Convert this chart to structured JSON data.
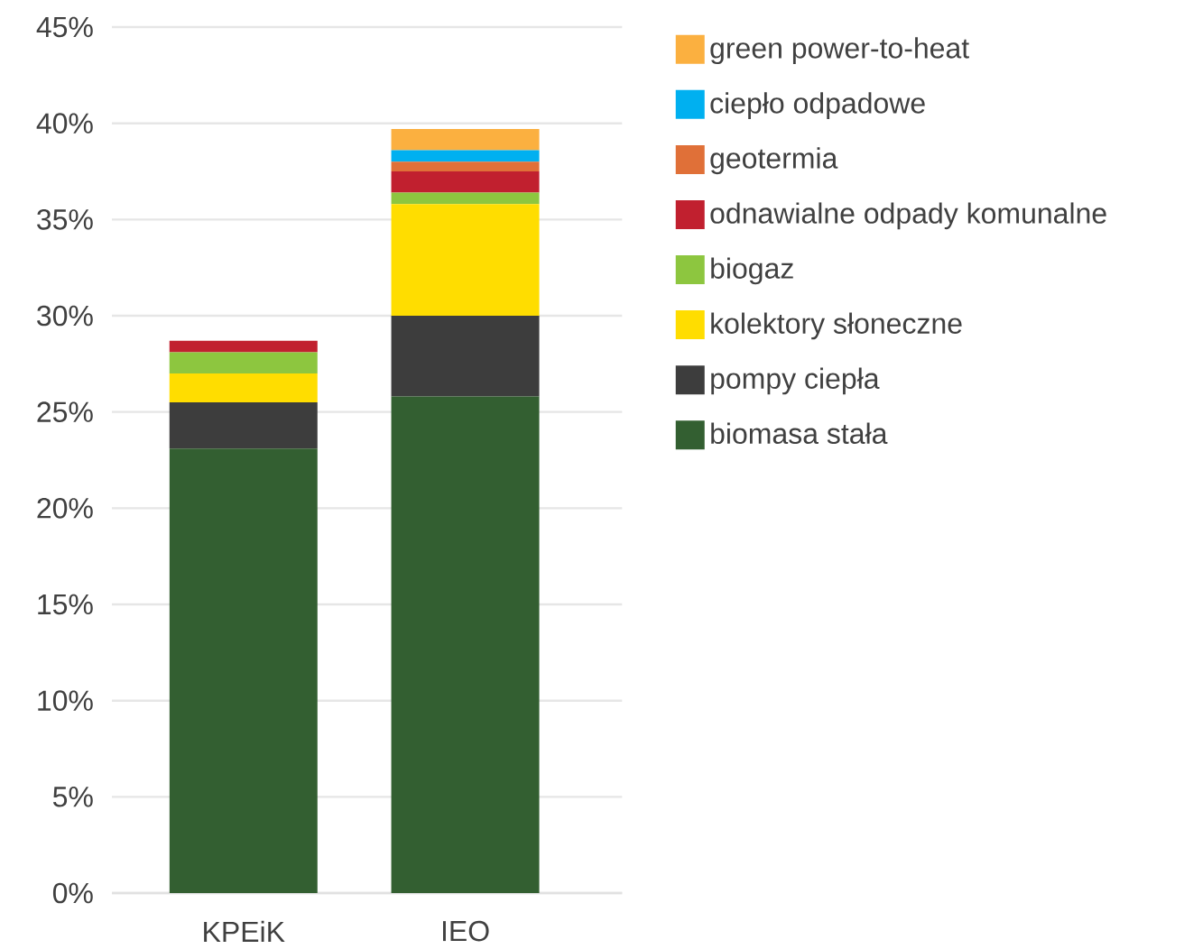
{
  "chart_data": {
    "type": "bar",
    "stacked": true,
    "categories": [
      "KPEiK",
      "IEO"
    ],
    "series": [
      {
        "name": "biomasa stała",
        "color": "#335f31",
        "values": [
          23.1,
          25.8
        ]
      },
      {
        "name": "pompy ciepła",
        "color": "#3d3d3d",
        "values": [
          2.4,
          4.2
        ]
      },
      {
        "name": "kolektory słoneczne",
        "color": "#ffdd00",
        "values": [
          1.5,
          5.8
        ]
      },
      {
        "name": "biogaz",
        "color": "#8dc63f",
        "values": [
          1.1,
          0.6
        ]
      },
      {
        "name": "odnawialne odpady komunalne",
        "color": "#c1202f",
        "values": [
          0.6,
          1.1
        ]
      },
      {
        "name": "geotermia",
        "color": "#e07038",
        "values": [
          0,
          0.5
        ]
      },
      {
        "name": "ciepło odpadowe",
        "color": "#00b0f0",
        "values": [
          0,
          0.6
        ]
      },
      {
        "name": "green power-to-heat",
        "color": "#fbb040",
        "values": [
          0,
          1.1
        ]
      }
    ],
    "ylim": [
      0,
      45
    ],
    "yticks": [
      {
        "value": 0,
        "label": "0%"
      },
      {
        "value": 5,
        "label": "5%"
      },
      {
        "value": 10,
        "label": "10%"
      },
      {
        "value": 15,
        "label": "15%"
      },
      {
        "value": 20,
        "label": "20%"
      },
      {
        "value": 25,
        "label": "25%"
      },
      {
        "value": 30,
        "label": "30%"
      },
      {
        "value": 35,
        "label": "35%"
      },
      {
        "value": 40,
        "label": "40%"
      },
      {
        "value": 45,
        "label": "45%"
      }
    ],
    "grid": "y",
    "legend": "right"
  }
}
